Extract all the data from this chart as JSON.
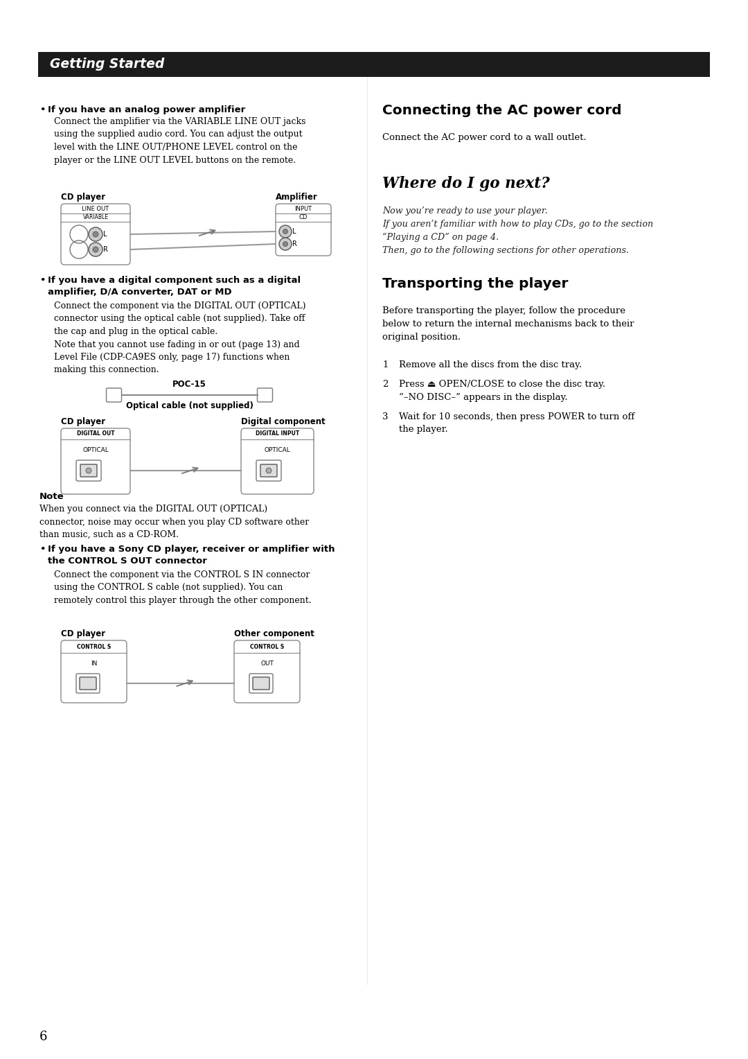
{
  "bg_color": "#ffffff",
  "header_bg": "#1c1c1c",
  "header_text": "Getting Started",
  "header_text_color": "#ffffff",
  "page_number": "6",
  "section_right_title1": "Connecting the AC power cord",
  "section_right_body1": "Connect the AC power cord to a wall outlet.",
  "section_right_title2": "Where do I go next?",
  "section_right_italic1": "Now you’re ready to use your player.",
  "section_right_italic2": "If you aren’t familiar with how to play CDs, go to the section",
  "section_right_italic3": "“Playing a CD” on page 4.",
  "section_right_italic4": "Then, go to the following sections for other operations.",
  "section_right_title3": "Transporting the player",
  "section_right_body3": "Before transporting the player, follow the procedure\nbelow to return the internal mechanisms back to their\noriginal position.",
  "section_right_step1": "Remove all the discs from the disc tray.",
  "section_right_step2": "Press ⏏ OPEN/CLOSE to close the disc tray.\n“–NO DISC–” appears in the display.",
  "section_right_step3": "Wait for 10 seconds, then press POWER to turn off\nthe player.",
  "bullet1_title": "If you have an analog power amplifier",
  "bullet1_body": "Connect the amplifier via the VARIABLE LINE OUT jacks\nusing the supplied audio cord. You can adjust the output\nlevel with the LINE OUT/PHONE LEVEL control on the\nplayer or the LINE OUT LEVEL buttons on the remote.",
  "bullet2_title": "If you have a digital component such as a digital\namplifier, D/A converter, DAT or MD",
  "bullet2_body": "Connect the component via the DIGITAL OUT (OPTICAL)\nconnector using the optical cable (not supplied). Take off\nthe cap and plug in the optical cable.\nNote that you cannot use fading in or out (page 13) and\nLevel File (CDP-CA9ES only, page 17) functions when\nmaking this connection.",
  "note_title": "Note",
  "note_body": "When you connect via the DIGITAL OUT (OPTICAL)\nconnector, noise may occur when you play CD software other\nthan music, such as a CD-ROM.",
  "bullet3_title": "If you have a Sony CD player, receiver or amplifier with\nthe CONTROL S OUT connector",
  "bullet3_body": "Connect the component via the CONTROL S IN connector\nusing the CONTROL S cable (not supplied). You can\nremotely control this player through the other component."
}
